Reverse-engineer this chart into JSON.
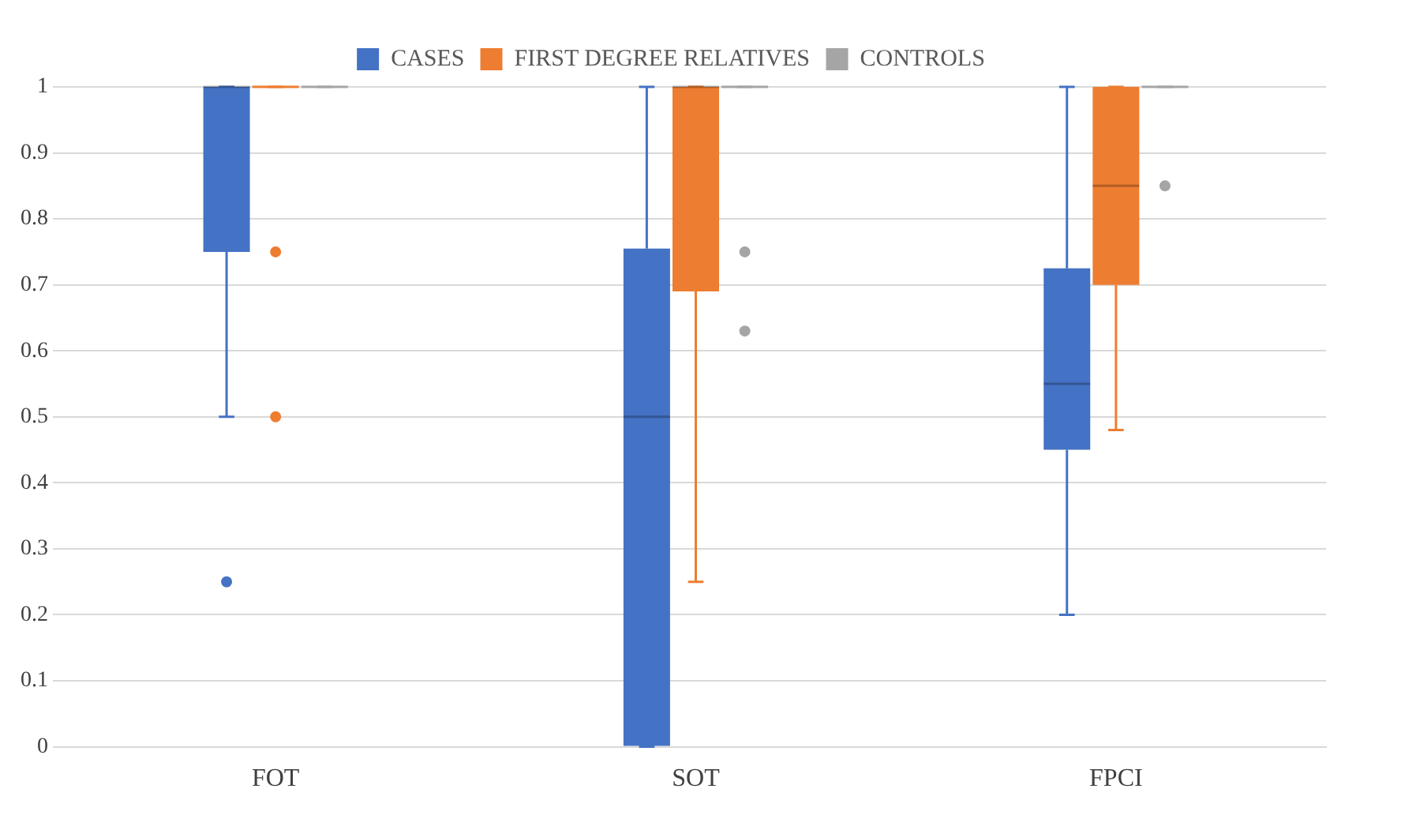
{
  "chart_data": {
    "type": "box",
    "categories": [
      "FOT",
      "SOT",
      "FPCI"
    ],
    "series": [
      {
        "name": "CASES",
        "color": "#4472c4",
        "boxes": [
          {
            "low": 0.5,
            "q1": 0.75,
            "median": 1,
            "q3": 1,
            "high": 1,
            "outliers": [
              0.25
            ]
          },
          {
            "low": 0,
            "q1": 0,
            "median": 0.5,
            "q3": 0.755,
            "high": 1
          },
          {
            "low": 0.2,
            "q1": 0.45,
            "median": 0.55,
            "q3": 0.725,
            "high": 1
          }
        ]
      },
      {
        "name": "FIRST DEGREE RELATIVES",
        "color": "#ed7d31",
        "boxes": [
          {
            "low": 1,
            "q1": 1,
            "median": 1,
            "q3": 1,
            "high": 1,
            "outliers": [
              0.75,
              0.5
            ]
          },
          {
            "low": 0.25,
            "q1": 0.69,
            "median": 1,
            "q3": 1,
            "high": 1
          },
          {
            "low": 0.48,
            "q1": 0.7,
            "median": 0.85,
            "q3": 1,
            "high": 1
          }
        ]
      },
      {
        "name": "CONTROLS",
        "color": "#a5a5a5",
        "boxes": [
          {
            "low": 1,
            "q1": 1,
            "median": 1,
            "q3": 1,
            "high": 1
          },
          {
            "low": 1,
            "q1": 1,
            "median": 1,
            "q3": 1,
            "high": 1,
            "outliers": [
              0.75,
              0.63
            ]
          },
          {
            "low": 1,
            "q1": 1,
            "median": 1,
            "q3": 1,
            "high": 1,
            "outliers": [
              0.85
            ]
          }
        ]
      }
    ],
    "ylim": [
      0,
      1
    ],
    "yticks": [
      0,
      0.1,
      0.2,
      0.3,
      0.4,
      0.5,
      0.6,
      0.7,
      0.8,
      0.9,
      1
    ],
    "grid": "y",
    "legend": "top"
  }
}
